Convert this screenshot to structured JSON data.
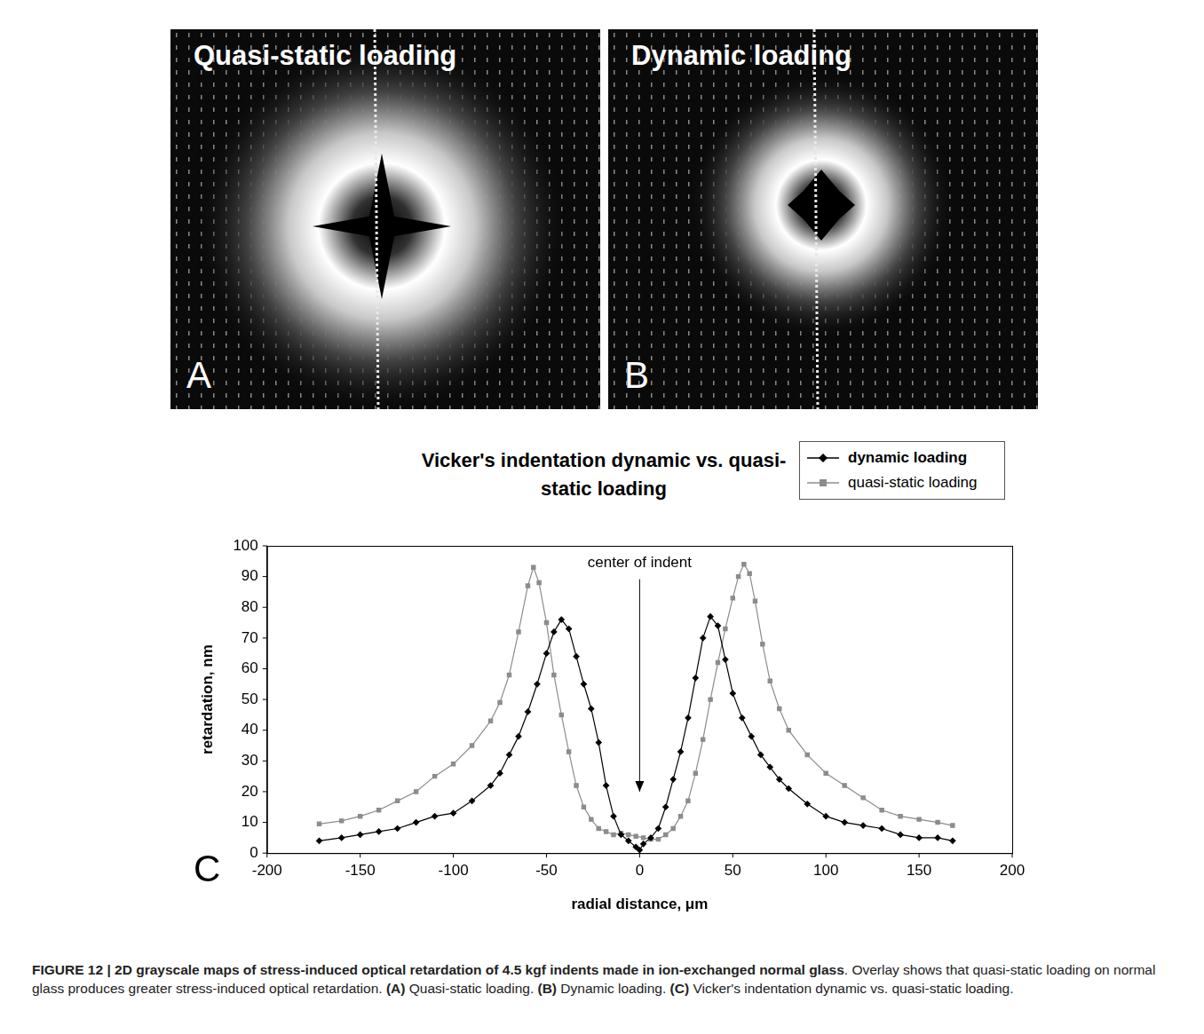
{
  "panels": [
    {
      "letter": "A",
      "title": "Quasi-static loading"
    },
    {
      "letter": "B",
      "title": "Dynamic loading"
    }
  ],
  "chart_data": {
    "type": "line",
    "letter": "C",
    "title": "Vicker's indentation dynamic vs. quasi-static loading",
    "x_label": "radial distance, μm",
    "y_label": "retardation, nm",
    "annotations": [
      {
        "text": "center of indent",
        "x": 0,
        "y": 92,
        "arrow_y": 20
      }
    ],
    "xlim": [
      -200,
      200
    ],
    "xticks": [
      -200,
      -150,
      -100,
      -50,
      0,
      50,
      100,
      150,
      200
    ],
    "ylim": [
      0,
      100
    ],
    "yticks": [
      0,
      10,
      20,
      30,
      40,
      50,
      60,
      70,
      80,
      90,
      100
    ],
    "grid": false,
    "legend": "top right",
    "series": [
      {
        "name": "dynamic loading",
        "color": "#000000",
        "marker": "diamond",
        "line_style": "solid",
        "x": [
          -172,
          -160,
          -150,
          -140,
          -130,
          -120,
          -110,
          -100,
          -90,
          -80,
          -75,
          -70,
          -65,
          -60,
          -55,
          -50,
          -46,
          -42,
          -38,
          -34,
          -30,
          -26,
          -22,
          -18,
          -14,
          -10,
          -6,
          -2,
          0,
          2,
          6,
          10,
          14,
          18,
          22,
          26,
          30,
          34,
          38,
          42,
          46,
          50,
          55,
          60,
          65,
          70,
          75,
          80,
          90,
          100,
          110,
          120,
          130,
          140,
          150,
          160,
          168
        ],
        "values": [
          4,
          5,
          6,
          7,
          8,
          10,
          12,
          13,
          17,
          22,
          26,
          32,
          38,
          46,
          55,
          65,
          72,
          76,
          73,
          64,
          55,
          47,
          36,
          22,
          12,
          6,
          4,
          2,
          1,
          3,
          5,
          8,
          15,
          24,
          33,
          44,
          57,
          70,
          77,
          74,
          63,
          52,
          44,
          38,
          32,
          28,
          24,
          21,
          16,
          12,
          10,
          9,
          8,
          6,
          5,
          5,
          4
        ]
      },
      {
        "name": "quasi-static loading",
        "color": "#8c8c8c",
        "marker": "square",
        "line_style": "solid",
        "x": [
          -172,
          -160,
          -150,
          -140,
          -130,
          -120,
          -110,
          -100,
          -90,
          -80,
          -75,
          -70,
          -65,
          -60,
          -57,
          -54,
          -50,
          -46,
          -42,
          -38,
          -34,
          -30,
          -26,
          -22,
          -18,
          -14,
          -10,
          -6,
          -2,
          2,
          6,
          10,
          14,
          18,
          22,
          26,
          30,
          34,
          38,
          42,
          46,
          50,
          53,
          56,
          59,
          62,
          66,
          70,
          75,
          80,
          90,
          100,
          110,
          120,
          130,
          140,
          150,
          160,
          168
        ],
        "values": [
          9.5,
          10.5,
          12,
          14,
          17,
          20,
          25,
          29,
          35,
          43,
          49,
          58,
          72,
          87,
          93,
          88,
          75,
          58,
          45,
          33,
          22,
          15,
          11,
          8,
          7,
          6,
          6.5,
          6,
          5.5,
          5,
          4.5,
          4.5,
          6,
          8,
          12,
          17,
          26,
          37,
          50,
          62,
          73,
          83,
          90,
          94,
          91,
          82,
          68,
          56,
          47,
          40,
          32,
          26,
          22,
          18,
          14,
          12,
          11,
          10,
          9
        ]
      }
    ]
  },
  "caption": {
    "title": "FIGURE 12 | 2D grayscale maps of stress-induced optical retardation of 4.5 kgf indents made in ion-exchanged normal glass",
    "sentence": ". Overlay shows that quasi-static loading on normal glass produces greater stress-induced optical retardation.",
    "parts": [
      [
        "(A)",
        "Quasi-static loading."
      ],
      [
        "(B)",
        "Dynamic loading."
      ],
      [
        "(C)",
        "Vicker's indentation dynamic vs. quasi-static loading."
      ]
    ]
  }
}
